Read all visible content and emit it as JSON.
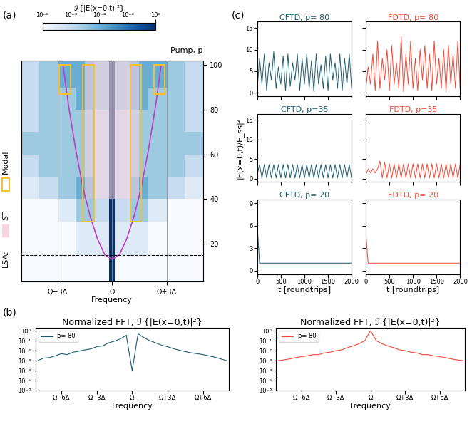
{
  "chart_data": [
    {
      "type": "heatmap",
      "panel_label": "(a)",
      "xlabel": "Frequency",
      "ylabel": "Pump, p",
      "x_edges": [
        -5,
        -4,
        -3,
        -2,
        -1,
        -0.15,
        0.15,
        1,
        2,
        3,
        4,
        5
      ],
      "y_edges": [
        3,
        15,
        30,
        40,
        50,
        60,
        70,
        80,
        90,
        102
      ],
      "cells": [
        [
          1e-08,
          1e-08,
          1e-08,
          1e-08,
          1e-08,
          1,
          1e-08,
          1e-08,
          1e-08,
          1e-08,
          1e-08
        ],
        [
          1e-08,
          1e-08,
          1e-08,
          1e-07,
          1e-07,
          1,
          1e-07,
          1e-07,
          1e-08,
          1e-08,
          1e-08
        ],
        [
          1e-08,
          1e-08,
          1e-07,
          1e-05,
          1e-06,
          1,
          1e-06,
          1e-05,
          1e-07,
          1e-08,
          1e-08
        ],
        [
          1e-07,
          1e-06,
          1e-05,
          0.0001,
          1e-06,
          1,
          1e-06,
          0.0001,
          1e-05,
          1e-06,
          1e-07
        ],
        [
          1e-06,
          1e-05,
          1e-05,
          1e-05,
          1e-06,
          1,
          1e-06,
          1e-05,
          1e-05,
          1e-05,
          1e-06
        ],
        [
          1e-05,
          1e-05,
          1e-05,
          1e-05,
          1e-06,
          1,
          1e-06,
          1e-05,
          1e-05,
          1e-05,
          1e-05
        ],
        [
          1e-06,
          1e-05,
          1e-05,
          1e-05,
          1e-06,
          1,
          1e-06,
          1e-05,
          1e-05,
          1e-05,
          1e-06
        ],
        [
          1e-06,
          1e-05,
          1e-05,
          0.0001,
          1e-05,
          1,
          1e-05,
          0.0001,
          1e-05,
          1e-05,
          1e-06
        ],
        [
          1e-06,
          1e-05,
          0.0001,
          0.0001,
          1e-05,
          1,
          1e-05,
          0.0001,
          0.0001,
          1e-05,
          1e-06
        ]
      ],
      "colorbar": {
        "label": "ℱ{|E(x=0,t)|²}",
        "range": [
          1e-08,
          1
        ],
        "ticks": [
          {
            "value": 1e-08,
            "label": "10⁻⁸"
          },
          {
            "value": 1e-06,
            "label": "10⁻⁶"
          },
          {
            "value": 0.0001,
            "label": "10⁻⁴"
          },
          {
            "value": 0.01,
            "label": "10⁻²"
          },
          {
            "value": 1,
            "label": "10⁰"
          }
        ]
      },
      "xlim": [
        -5,
        5
      ],
      "xticks": [
        {
          "value": -3,
          "label": "Ω−3Δ"
        },
        {
          "value": 0,
          "label": "Ω"
        },
        {
          "value": 3,
          "label": "Ω+3Δ"
        }
      ],
      "ylim": [
        3,
        102
      ],
      "yticks": [
        20,
        40,
        60,
        80,
        100
      ],
      "grid": true,
      "lsa_curve": {
        "color": "#c03cc0",
        "x": [
          -2.7,
          -2.4,
          -2,
          -1.6,
          -1.2,
          -0.8,
          -0.4,
          0,
          0.4,
          0.8,
          1.2,
          1.6,
          2,
          2.4,
          2.7
        ],
        "y": [
          100,
          82,
          62,
          45,
          32,
          22,
          15,
          13,
          15,
          22,
          32,
          45,
          62,
          82,
          100
        ]
      },
      "dashed_line_p": 15,
      "st_regions": [
        [
          -1.5,
          1.5,
          40,
          102
        ]
      ],
      "modal_regions": [
        [
          -1.6,
          -1.0,
          30,
          100
        ],
        [
          1.0,
          1.6,
          30,
          100
        ],
        [
          -2.9,
          -2.3,
          87,
          100
        ],
        [
          2.3,
          2.9,
          87,
          100
        ]
      ],
      "legend_title": "LSA:",
      "st_label": "ST",
      "modal_label": "Modal",
      "st_color": "#f7d4e0",
      "modal_color": "#f2c230"
    },
    {
      "type": "line",
      "panel_label": "(b)",
      "title": "Normalized FFT, ℱ{|E(x=0,t)|²}",
      "xlabel": "Frequency",
      "x": [
        -8,
        -7.5,
        -7,
        -6.5,
        -6,
        -5.5,
        -5,
        -4.5,
        -4,
        -3.5,
        -3,
        -2.5,
        -2,
        -1.5,
        -1,
        -0.5,
        0,
        0.5,
        1,
        1.5,
        2,
        2.5,
        3,
        3.5,
        4,
        4.5,
        5,
        5.5,
        6,
        6.5,
        7,
        7.5,
        8
      ],
      "series": [
        {
          "name": "p= 80",
          "color": "#1d5a6e",
          "values": [
            0.001,
            0.0018,
            0.002,
            0.003,
            0.005,
            0.004,
            0.007,
            0.009,
            0.012,
            0.015,
            0.025,
            0.03,
            0.06,
            0.09,
            0.15,
            0.35,
            0.0001,
            0.5,
            0.2,
            0.1,
            0.06,
            0.035,
            0.025,
            0.016,
            0.011,
            0.008,
            0.006,
            0.005,
            0.004,
            0.003,
            0.0022,
            0.0015,
            0.001
          ]
        }
      ],
      "log": "y",
      "legend": "upper left",
      "xlim": [
        -8.2,
        8.2
      ],
      "ylim": [
        1e-06,
        2
      ],
      "xticks": [
        {
          "value": -6,
          "label": "Ω−6Δ"
        },
        {
          "value": -3,
          "label": "Ω−3Δ"
        },
        {
          "value": 0,
          "label": "Ω"
        },
        {
          "value": 3,
          "label": "Ω+3Δ"
        },
        {
          "value": 6,
          "label": "Ω+6Δ"
        }
      ],
      "yticks": [
        {
          "value": 1,
          "label": "10⁰"
        },
        {
          "value": 0.1,
          "label": "10⁻¹"
        },
        {
          "value": 0.01,
          "label": "10⁻²"
        },
        {
          "value": 0.001,
          "label": "10⁻³"
        },
        {
          "value": 0.0001,
          "label": "10⁻⁴"
        },
        {
          "value": 1e-05,
          "label": "10⁻⁵"
        },
        {
          "value": 1e-06,
          "label": "10⁻⁶"
        }
      ]
    },
    {
      "type": "line",
      "title": "Normalized FFT, ℱ{|E(x=0,t)|²}",
      "xlabel": "Frequency",
      "x": [
        -8,
        -7.5,
        -7,
        -6.5,
        -6,
        -5.5,
        -5,
        -4.5,
        -4,
        -3.5,
        -3,
        -2.5,
        -2,
        -1.5,
        -1,
        -0.5,
        0,
        0.5,
        1,
        1.5,
        2,
        2.5,
        3,
        3.5,
        4,
        4.5,
        5,
        5.5,
        6,
        6.5,
        7,
        7.5,
        8
      ],
      "series": [
        {
          "name": "p= 80",
          "color": "#f04a3a",
          "values": [
            0.001,
            0.0012,
            0.0015,
            0.002,
            0.0025,
            0.003,
            0.004,
            0.004,
            0.006,
            0.007,
            0.01,
            0.012,
            0.02,
            0.03,
            0.05,
            0.1,
            1,
            0.1,
            0.05,
            0.03,
            0.02,
            0.012,
            0.01,
            0.007,
            0.006,
            0.004,
            0.004,
            0.003,
            0.0025,
            0.002,
            0.0015,
            0.0012,
            0.001
          ]
        }
      ],
      "log": "y",
      "legend": "upper left",
      "xlim": [
        -8.2,
        8.2
      ],
      "ylim": [
        1e-06,
        2
      ],
      "xticks": [
        {
          "value": -6,
          "label": "Ω−6Δ"
        },
        {
          "value": -3,
          "label": "Ω−3Δ"
        },
        {
          "value": 0,
          "label": "Ω"
        },
        {
          "value": 3,
          "label": "Ω+3Δ"
        },
        {
          "value": 6,
          "label": "Ω+6Δ"
        }
      ],
      "yticks": [
        {
          "value": 1,
          "label": "10⁰"
        },
        {
          "value": 0.1,
          "label": "10⁻¹"
        },
        {
          "value": 0.01,
          "label": "10⁻²"
        },
        {
          "value": 0.001,
          "label": "10⁻³"
        },
        {
          "value": 0.0001,
          "label": "10⁻⁴"
        },
        {
          "value": 1e-05,
          "label": "10⁻⁵"
        },
        {
          "value": 1e-06,
          "label": "10⁻⁶"
        }
      ]
    },
    {
      "type": "line",
      "panel_label": "(c)",
      "title": "CFTD, p= 80",
      "color": "#1d5a6e",
      "tick_labels": "y",
      "x": [
        0,
        50,
        100,
        150,
        200,
        250,
        300,
        350,
        400,
        450,
        500,
        550,
        600,
        650,
        700,
        750,
        800,
        850,
        900,
        950,
        1000,
        1050,
        1100,
        1150,
        1200,
        1250,
        1300,
        1350,
        1400,
        1450,
        1500,
        1550,
        1600,
        1650,
        1700,
        1750,
        1800,
        1850,
        1900,
        1950,
        2000
      ],
      "values": [
        1,
        8,
        2,
        9,
        0.5,
        7,
        3,
        9.5,
        1,
        6,
        2,
        8.5,
        0.5,
        9,
        1.5,
        7,
        3,
        9,
        0.5,
        8,
        2,
        9,
        1,
        7.5,
        0.3,
        9,
        2,
        6.5,
        1,
        8.5,
        0.5,
        9,
        3,
        7,
        1,
        9,
        0.5,
        8,
        2,
        9,
        1
      ],
      "xlim": [
        0,
        2000
      ],
      "xticks": [
        0,
        500,
        1000,
        1500,
        2000
      ],
      "ylim": [
        -0.8,
        16.5
      ],
      "yticks": [
        0,
        5,
        10,
        15
      ]
    },
    {
      "type": "line",
      "title": "FDTD, p= 80",
      "color": "#f04a3a",
      "tick_labels": false,
      "x": [
        0,
        50,
        100,
        150,
        200,
        250,
        300,
        350,
        400,
        450,
        500,
        550,
        600,
        650,
        700,
        750,
        800,
        850,
        900,
        950,
        1000,
        1050,
        1100,
        1150,
        1200,
        1250,
        1300,
        1350,
        1400,
        1450,
        1500,
        1550,
        1600,
        1650,
        1700,
        1750,
        1800,
        1850,
        1900,
        1950,
        2000
      ],
      "values": [
        1,
        6,
        2,
        9,
        0.5,
        12,
        1,
        8,
        3,
        10,
        0.5,
        11,
        2,
        7,
        1,
        13,
        0.3,
        9,
        2,
        12,
        1,
        8,
        0.5,
        10,
        3,
        11,
        1,
        9,
        0.5,
        12,
        2,
        8,
        1,
        10,
        0.3,
        11,
        2,
        9,
        1,
        12,
        0.5
      ],
      "xlim": [
        0,
        2000
      ],
      "xticks": [
        0,
        500,
        1000,
        1500,
        2000
      ],
      "ylim": [
        -0.8,
        16.5
      ],
      "yticks": [
        0,
        5,
        10,
        15
      ]
    },
    {
      "type": "line",
      "title": "CFTD, p=35",
      "color": "#1d5a6e",
      "tick_labels": "y",
      "ylabel": "|E(x=0,t)/E_ss|²",
      "x": [
        0,
        50,
        100,
        150,
        200,
        250,
        300,
        350,
        400,
        450,
        500,
        550,
        600,
        650,
        700,
        750,
        800,
        850,
        900,
        950,
        1000,
        1050,
        1100,
        1150,
        1200,
        1250,
        1300,
        1350,
        1400,
        1450,
        1500,
        1550,
        1600,
        1650,
        1700,
        1750,
        1800,
        1850,
        1900,
        1950,
        2000
      ],
      "values": [
        1,
        3.6,
        0.2,
        3.6,
        0.2,
        3.6,
        0.2,
        3.6,
        0.2,
        3.6,
        0.2,
        3.6,
        0.2,
        3.6,
        0.2,
        3.6,
        0.2,
        3.6,
        0.2,
        3.6,
        0.2,
        3.6,
        0.2,
        3.6,
        0.2,
        3.6,
        0.2,
        3.6,
        0.2,
        3.6,
        0.2,
        3.6,
        0.2,
        3.6,
        0.2,
        3.6,
        0.2,
        3.6,
        0.2,
        3.6,
        0.2
      ],
      "xlim": [
        0,
        2000
      ],
      "xticks": [
        0,
        500,
        1000,
        1500,
        2000
      ],
      "ylim": [
        -0.8,
        16.5
      ],
      "yticks": [
        0,
        5,
        10,
        15
      ]
    },
    {
      "type": "line",
      "title": "FDTD, p=35",
      "color": "#f04a3a",
      "tick_labels": false,
      "x": [
        0,
        50,
        100,
        150,
        200,
        250,
        300,
        350,
        400,
        450,
        500,
        550,
        600,
        650,
        700,
        750,
        800,
        850,
        900,
        950,
        1000,
        1050,
        1100,
        1150,
        1200,
        1250,
        1300,
        1350,
        1400,
        1450,
        1500,
        1550,
        1600,
        1650,
        1700,
        1750,
        1800,
        1850,
        1900,
        1950,
        2000
      ],
      "values": [
        1,
        2.5,
        1.5,
        2.5,
        1.5,
        2.5,
        4.5,
        0.2,
        4.2,
        0.2,
        3.8,
        0.2,
        3.8,
        0.2,
        3.8,
        0.2,
        3.8,
        0.2,
        3.8,
        0.2,
        3.8,
        0.2,
        3.8,
        0.2,
        3.8,
        0.2,
        3.8,
        0.2,
        3.8,
        0.2,
        3.8,
        0.2,
        3.8,
        0.2,
        3.8,
        0.2,
        3.8,
        0.2,
        3.8,
        0.2,
        3.8
      ],
      "xlim": [
        0,
        2000
      ],
      "xticks": [
        0,
        500,
        1000,
        1500,
        2000
      ],
      "ylim": [
        -0.8,
        16.5
      ],
      "yticks": [
        0,
        5,
        10,
        15
      ]
    },
    {
      "type": "line",
      "title": "CFTD, p= 20",
      "color": "#1d5a6e",
      "tick_labels": true,
      "xlabel": "t [roundtrips]",
      "x": [
        0,
        50,
        100,
        150,
        200,
        250,
        300,
        350,
        400,
        450,
        500,
        550,
        600,
        650,
        700,
        750,
        800,
        850,
        900,
        950,
        1000,
        1050,
        1100,
        1150,
        1200,
        1250,
        1300,
        1350,
        1400,
        1450,
        1500,
        1550,
        1600,
        1650,
        1700,
        1750,
        1800,
        1850,
        1900,
        1950,
        2000
      ],
      "values": [
        6,
        1,
        1,
        1,
        1,
        1,
        1,
        1,
        1,
        1,
        1,
        1,
        1,
        1,
        1,
        1,
        1,
        1,
        1,
        1,
        1,
        1,
        1,
        1,
        1,
        1,
        1,
        1,
        1,
        1,
        1,
        1,
        1,
        1,
        1,
        1,
        1,
        1,
        1,
        1,
        1
      ],
      "xlim": [
        0,
        2000
      ],
      "xticks": [
        0,
        500,
        1000,
        1500,
        2000
      ],
      "ylim": [
        -0.5,
        9.5
      ],
      "yticks": [
        0,
        3,
        6,
        9
      ]
    },
    {
      "type": "line",
      "title": "FDTD, p= 20",
      "color": "#f04a3a",
      "tick_labels": "x",
      "xlabel": "t [roundtrips]",
      "x": [
        0,
        50,
        100,
        150,
        200,
        250,
        300,
        350,
        400,
        450,
        500,
        550,
        600,
        650,
        700,
        750,
        800,
        850,
        900,
        950,
        1000,
        1050,
        1100,
        1150,
        1200,
        1250,
        1300,
        1350,
        1400,
        1450,
        1500,
        1550,
        1600,
        1650,
        1700,
        1750,
        1800,
        1850,
        1900,
        1950,
        2000
      ],
      "values": [
        5,
        1,
        1,
        1,
        1,
        1,
        1,
        1,
        1,
        1,
        1,
        1,
        1,
        1,
        1,
        1,
        1,
        1,
        1,
        1,
        1,
        1,
        1,
        1,
        1,
        1,
        1,
        1,
        1,
        1,
        1,
        1,
        1,
        1,
        1,
        1,
        1,
        1,
        1,
        1,
        1
      ],
      "xlim": [
        0,
        2000
      ],
      "xticks": [
        0,
        500,
        1000,
        1500,
        2000
      ],
      "ylim": [
        -0.5,
        9.5
      ],
      "yticks": [
        0,
        3,
        6,
        9
      ]
    }
  ]
}
